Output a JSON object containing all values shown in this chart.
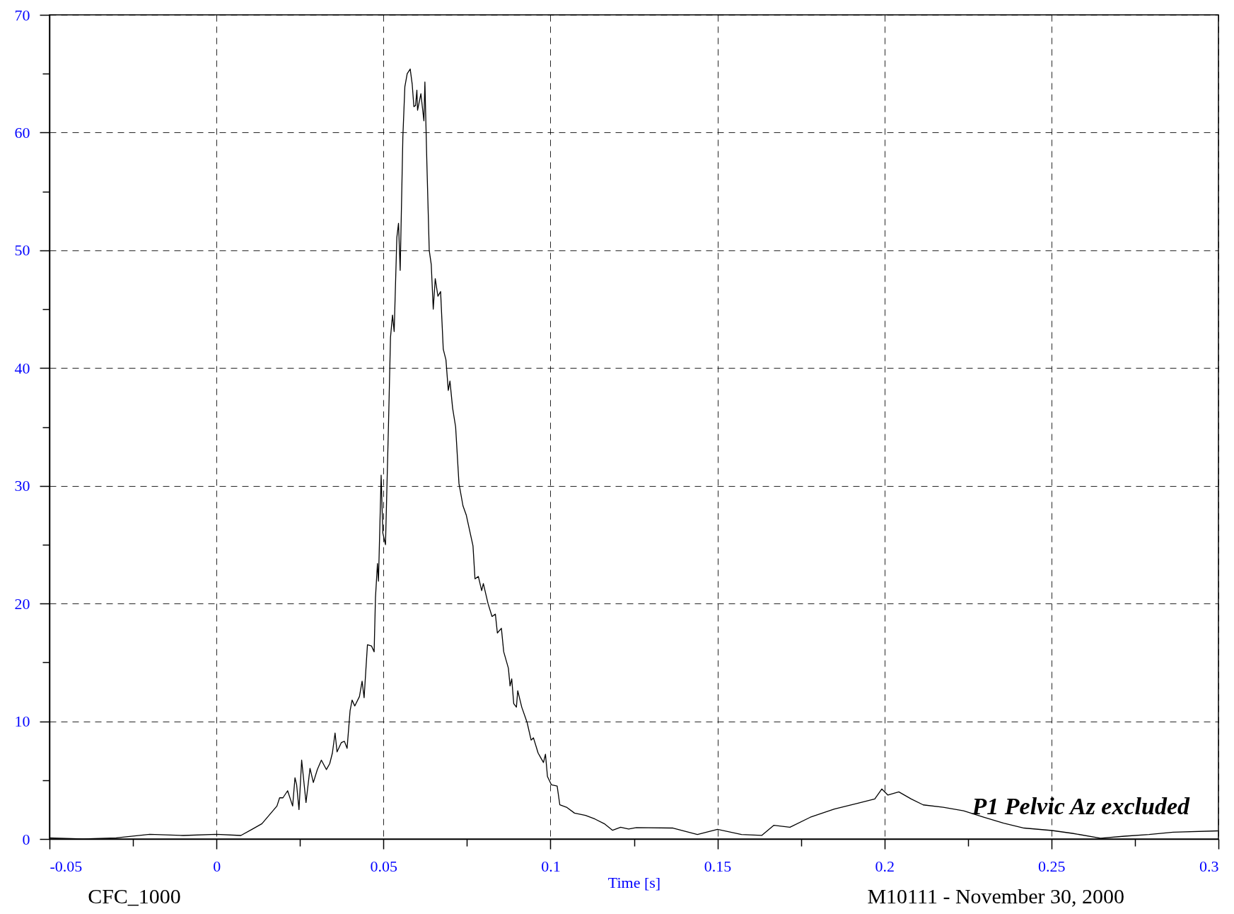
{
  "chart_data": {
    "type": "line",
    "xlabel": "Time [s]",
    "annotations": [
      "CFC_1000",
      "M10111 - November 30, 2000",
      "P1 Pelvic Az excluded"
    ],
    "xlim": [
      -0.05,
      0.3
    ],
    "ylim": [
      0,
      70
    ],
    "xticks": [
      -0.05,
      {
        "value": -0.025,
        "label": null
      },
      0,
      {
        "value": 0.025,
        "label": null
      },
      0.05,
      {
        "value": 0.075,
        "label": null
      },
      0.1,
      {
        "value": 0.125,
        "label": null
      },
      0.15,
      {
        "value": 0.175,
        "label": null
      },
      0.2,
      {
        "value": 0.225,
        "label": null
      },
      0.25,
      {
        "value": 0.275,
        "label": null
      },
      0.3
    ],
    "yticks": [
      0,
      {
        "value": 5,
        "label": null
      },
      10,
      {
        "value": 15,
        "label": null
      },
      20,
      {
        "value": 25,
        "label": null
      },
      30,
      {
        "value": 35,
        "label": null
      },
      40,
      {
        "value": 45,
        "label": null
      },
      50,
      {
        "value": 55,
        "label": null
      },
      60,
      {
        "value": 65,
        "label": null
      },
      70
    ],
    "grid": true,
    "series": [
      {
        "color": "#000000",
        "x": [
          -0.05,
          -0.04,
          -0.03,
          -0.02,
          -0.01,
          0,
          0.0073,
          0.0108,
          0.0136,
          0.0181,
          0.0189,
          0.0199,
          0.0213,
          0.0228,
          0.0235,
          0.024,
          0.0247,
          0.0255,
          0.0268,
          0.028,
          0.029,
          0.0302,
          0.0314,
          0.0329,
          0.0339,
          0.0347,
          0.0355,
          0.0361,
          0.0374,
          0.0383,
          0.0391,
          0.04,
          0.0406,
          0.0414,
          0.0428,
          0.0436,
          0.0442,
          0.0452,
          0.0464,
          0.0472,
          0.0476,
          0.0482,
          0.0485,
          0.0493,
          0.0498,
          0.0506,
          0.0515,
          0.0521,
          0.0527,
          0.0532,
          0.054,
          0.0545,
          0.055,
          0.0558,
          0.0564,
          0.0571,
          0.058,
          0.0586,
          0.0591,
          0.0596,
          0.06,
          0.0602,
          0.0612,
          0.0621,
          0.0624,
          0.063,
          0.0637,
          0.0643,
          0.0649,
          0.0655,
          0.0663,
          0.0671,
          0.0679,
          0.0687,
          0.0694,
          0.0699,
          0.0707,
          0.0716,
          0.0726,
          0.0738,
          0.0748,
          0.0768,
          0.0774,
          0.0784,
          0.0794,
          0.0799,
          0.0813,
          0.0825,
          0.0835,
          0.0841,
          0.0853,
          0.086,
          0.0874,
          0.0879,
          0.0884,
          0.089,
          0.0898,
          0.0902,
          0.0914,
          0.093,
          0.0942,
          0.0949,
          0.0963,
          0.0979,
          0.0985,
          0.0991,
          0.1003,
          0.102,
          0.1028,
          0.1048,
          0.1072,
          0.1105,
          0.1133,
          0.1161,
          0.1186,
          0.121,
          0.1234,
          0.1257,
          0.1367,
          0.144,
          0.15,
          0.1572,
          0.1633,
          0.1669,
          0.1717,
          0.1778,
          0.185,
          0.1923,
          0.1971,
          0.1992,
          0.201,
          0.2043,
          0.208,
          0.2116,
          0.2176,
          0.2237,
          0.2297,
          0.2357,
          0.2418,
          0.2502,
          0.2563,
          0.2647,
          0.2719,
          0.2792,
          0.2864,
          0.2998
        ],
        "values": [
          0.1,
          0,
          0.1,
          0.4,
          0.3,
          0.4,
          0.3,
          0.85,
          1.3,
          2.8,
          3.5,
          3.5,
          4.1,
          2.8,
          5.2,
          4.6,
          2.5,
          6.7,
          3.1,
          6.0,
          4.8,
          5.9,
          6.7,
          5.9,
          6.4,
          7.3,
          9.0,
          7.4,
          8.2,
          8.3,
          7.7,
          10.9,
          11.8,
          11.3,
          12.1,
          13.4,
          12.0,
          16.5,
          16.4,
          15.9,
          20.5,
          23.4,
          21.9,
          30.9,
          26.0,
          25.0,
          35.2,
          42.6,
          44.5,
          43.1,
          51.1,
          52.3,
          48.3,
          59.6,
          63.9,
          65.0,
          65.4,
          64.1,
          62.2,
          62.3,
          63.6,
          61.9,
          63.3,
          61.0,
          64.3,
          57.3,
          50.0,
          48.8,
          45.0,
          47.6,
          46.1,
          46.5,
          41.6,
          40.7,
          38.1,
          38.9,
          36.6,
          35.0,
          30.2,
          28.3,
          27.5,
          24.9,
          22.1,
          22.3,
          21.1,
          21.7,
          20.0,
          18.9,
          19.1,
          17.5,
          17.9,
          15.9,
          14.5,
          13.0,
          13.6,
          11.5,
          11.2,
          12.6,
          11.2,
          9.9,
          8.4,
          8.6,
          7.3,
          6.5,
          7.2,
          5.3,
          4.6,
          4.5,
          2.9,
          2.7,
          2.2,
          2.0,
          1.7,
          1.3,
          0.74,
          1.0,
          0.85,
          0.97,
          0.93,
          0.38,
          0.82,
          0.38,
          0.31,
          1.17,
          1.0,
          1.85,
          2.54,
          3.05,
          3.4,
          4.25,
          3.74,
          4.0,
          3.4,
          2.9,
          2.7,
          2.4,
          1.85,
          1.34,
          0.93,
          0.72,
          0.48,
          0.07,
          0.24,
          0.38,
          0.58,
          0.69
        ]
      }
    ]
  }
}
